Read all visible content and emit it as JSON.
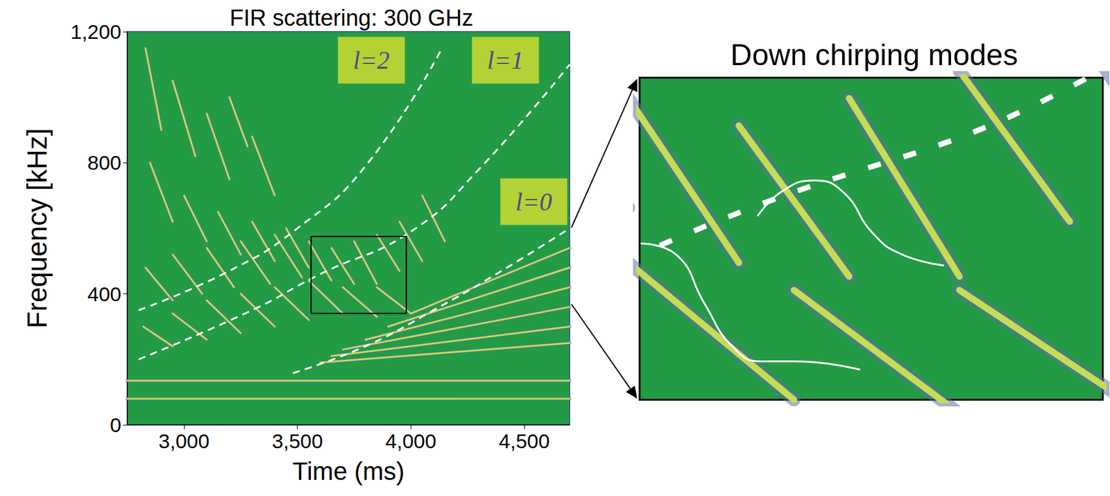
{
  "chart_data": {
    "type": "line",
    "title": "FIR scattering: 300 GHz",
    "x_label": "Time (ms)",
    "y_label": "Frequency [kHz]",
    "xlim": [
      2750,
      4700
    ],
    "xticks": [
      3000,
      3500,
      4000,
      4500
    ],
    "ylim": [
      0,
      1200
    ],
    "yticks": [
      0,
      400,
      800,
      1200
    ],
    "grid": false,
    "series": [
      {
        "values": [
          [
            2800,
            350
          ],
          [
            3200,
            470
          ],
          [
            3500,
            600
          ],
          [
            3800,
            790
          ],
          [
            4130,
            1140
          ]
        ],
        "color": "#ffffff",
        "line_style": "dashed"
      },
      {
        "values": [
          [
            2800,
            200
          ],
          [
            3300,
            350
          ],
          [
            3600,
            460
          ],
          [
            4000,
            590
          ],
          [
            4300,
            780
          ],
          [
            4700,
            1100
          ]
        ],
        "color": "#ffffff",
        "line_style": "dashed"
      },
      {
        "values": [
          [
            3480,
            158
          ],
          [
            3800,
            240
          ],
          [
            4100,
            350
          ],
          [
            4400,
            470
          ],
          [
            4700,
            600
          ]
        ],
        "color": "#ffffff",
        "line_style": "dashed"
      },
      {
        "values": [
          [
            2750,
            135
          ],
          [
            4700,
            135
          ]
        ],
        "color": "#c6dc54",
        "line_style": "solid"
      },
      {
        "values": [
          [
            2750,
            80
          ],
          [
            4700,
            80
          ]
        ],
        "color": "#c6dc54",
        "line_style": "solid"
      },
      {
        "values": [
          [
            2830,
            1150
          ],
          [
            2900,
            900
          ]
        ],
        "color": "#c6dc54",
        "line_style": "solid"
      },
      {
        "values": [
          [
            2950,
            1050
          ],
          [
            3050,
            820
          ]
        ],
        "color": "#c6dc54",
        "line_style": "solid"
      },
      {
        "values": [
          [
            3100,
            950
          ],
          [
            3200,
            750
          ]
        ],
        "color": "#c6dc54",
        "line_style": "solid"
      },
      {
        "values": [
          [
            3200,
            1000
          ],
          [
            3280,
            850
          ]
        ],
        "color": "#c6dc54",
        "line_style": "solid"
      },
      {
        "values": [
          [
            3300,
            880
          ],
          [
            3400,
            700
          ]
        ],
        "color": "#c6dc54",
        "line_style": "solid"
      },
      {
        "values": [
          [
            2850,
            800
          ],
          [
            2950,
            620
          ]
        ],
        "color": "#c6dc54",
        "line_style": "solid"
      },
      {
        "values": [
          [
            3000,
            700
          ],
          [
            3100,
            560
          ]
        ],
        "color": "#c6dc54",
        "line_style": "solid"
      },
      {
        "values": [
          [
            3150,
            650
          ],
          [
            3250,
            520
          ]
        ],
        "color": "#c6dc54",
        "line_style": "solid"
      },
      {
        "values": [
          [
            3300,
            620
          ],
          [
            3400,
            500
          ]
        ],
        "color": "#c6dc54",
        "line_style": "solid"
      },
      {
        "values": [
          [
            3450,
            600
          ],
          [
            3550,
            480
          ]
        ],
        "color": "#c6dc54",
        "line_style": "solid"
      },
      {
        "values": [
          [
            2830,
            480
          ],
          [
            2950,
            380
          ]
        ],
        "color": "#c6dc54",
        "line_style": "solid"
      },
      {
        "values": [
          [
            2950,
            520
          ],
          [
            3080,
            400
          ]
        ],
        "color": "#c6dc54",
        "line_style": "solid"
      },
      {
        "values": [
          [
            3100,
            540
          ],
          [
            3220,
            420
          ]
        ],
        "color": "#c6dc54",
        "line_style": "solid"
      },
      {
        "values": [
          [
            3250,
            560
          ],
          [
            3380,
            430
          ]
        ],
        "color": "#c6dc54",
        "line_style": "solid"
      },
      {
        "values": [
          [
            3400,
            580
          ],
          [
            3520,
            450
          ]
        ],
        "color": "#c6dc54",
        "line_style": "solid"
      },
      {
        "values": [
          [
            3550,
            560
          ],
          [
            3650,
            440
          ]
        ],
        "color": "#c6dc54",
        "line_style": "solid"
      },
      {
        "values": [
          [
            3650,
            540
          ],
          [
            3750,
            430
          ]
        ],
        "color": "#c6dc54",
        "line_style": "solid"
      },
      {
        "values": [
          [
            3750,
            560
          ],
          [
            3850,
            430
          ]
        ],
        "color": "#c6dc54",
        "line_style": "solid"
      },
      {
        "values": [
          [
            3850,
            580
          ],
          [
            3950,
            470
          ]
        ],
        "color": "#c6dc54",
        "line_style": "solid"
      },
      {
        "values": [
          [
            3950,
            620
          ],
          [
            4050,
            500
          ]
        ],
        "color": "#c6dc54",
        "line_style": "solid"
      },
      {
        "values": [
          [
            4050,
            700
          ],
          [
            4150,
            560
          ]
        ],
        "color": "#c6dc54",
        "line_style": "solid"
      },
      {
        "values": [
          [
            2820,
            300
          ],
          [
            2950,
            240
          ]
        ],
        "color": "#c6dc54",
        "line_style": "solid"
      },
      {
        "values": [
          [
            2950,
            340
          ],
          [
            3100,
            260
          ]
        ],
        "color": "#c6dc54",
        "line_style": "solid"
      },
      {
        "values": [
          [
            3100,
            380
          ],
          [
            3250,
            280
          ]
        ],
        "color": "#c6dc54",
        "line_style": "solid"
      },
      {
        "values": [
          [
            3250,
            400
          ],
          [
            3400,
            300
          ]
        ],
        "color": "#c6dc54",
        "line_style": "solid"
      },
      {
        "values": [
          [
            3400,
            420
          ],
          [
            3550,
            320
          ]
        ],
        "color": "#c6dc54",
        "line_style": "solid"
      },
      {
        "values": [
          [
            3550,
            440
          ],
          [
            3700,
            340
          ]
        ],
        "color": "#c6dc54",
        "line_style": "solid"
      },
      {
        "values": [
          [
            3700,
            420
          ],
          [
            3850,
            330
          ]
        ],
        "color": "#c6dc54",
        "line_style": "solid"
      },
      {
        "values": [
          [
            3850,
            420
          ],
          [
            4000,
            340
          ]
        ],
        "color": "#c6dc54",
        "line_style": "solid"
      },
      {
        "values": [
          [
            3800,
            260
          ],
          [
            4700,
            420
          ]
        ],
        "color": "#c6dc54",
        "line_style": "solid"
      },
      {
        "values": [
          [
            3700,
            230
          ],
          [
            4700,
            360
          ]
        ],
        "color": "#c6dc54",
        "line_style": "solid"
      },
      {
        "values": [
          [
            3650,
            210
          ],
          [
            4700,
            300
          ]
        ],
        "color": "#c6dc54",
        "line_style": "solid"
      },
      {
        "values": [
          [
            3600,
            190
          ],
          [
            4700,
            250
          ]
        ],
        "color": "#c6dc54",
        "line_style": "solid"
      },
      {
        "values": [
          [
            3900,
            300
          ],
          [
            4700,
            480
          ]
        ],
        "color": "#c6dc54",
        "line_style": "solid"
      },
      {
        "values": [
          [
            4000,
            340
          ],
          [
            4700,
            540
          ]
        ],
        "color": "#c6dc54",
        "line_style": "solid"
      }
    ],
    "annotations": [
      {
        "text": "l=2",
        "x": 3826,
        "y": 1113
      },
      {
        "text": "l=1",
        "x": 4417,
        "y": 1113
      },
      {
        "text": "l=0",
        "x": 4542,
        "y": 681
      }
    ],
    "zoom_box": {
      "xlim": [
        3560,
        3980
      ],
      "ylim": [
        340,
        575
      ]
    },
    "inset": {
      "title": "Down chirping modes",
      "curves": [
        {
          "values": [
            [
              3561,
              454
            ],
            [
              3593,
              446
            ],
            [
              3619,
              410
            ],
            [
              3644,
              379
            ],
            [
              3670,
              368
            ],
            [
              3702,
              368
            ],
            [
              3760,
              362
            ]
          ],
          "color": "#ffffff"
        },
        {
          "values": [
            [
              3667,
              474
            ],
            [
              3689,
              492
            ],
            [
              3718,
              500
            ],
            [
              3744,
              492
            ],
            [
              3772,
              461
            ],
            [
              3798,
              446
            ],
            [
              3836,
              438
            ]
          ],
          "color": "#ffffff"
        }
      ]
    }
  }
}
